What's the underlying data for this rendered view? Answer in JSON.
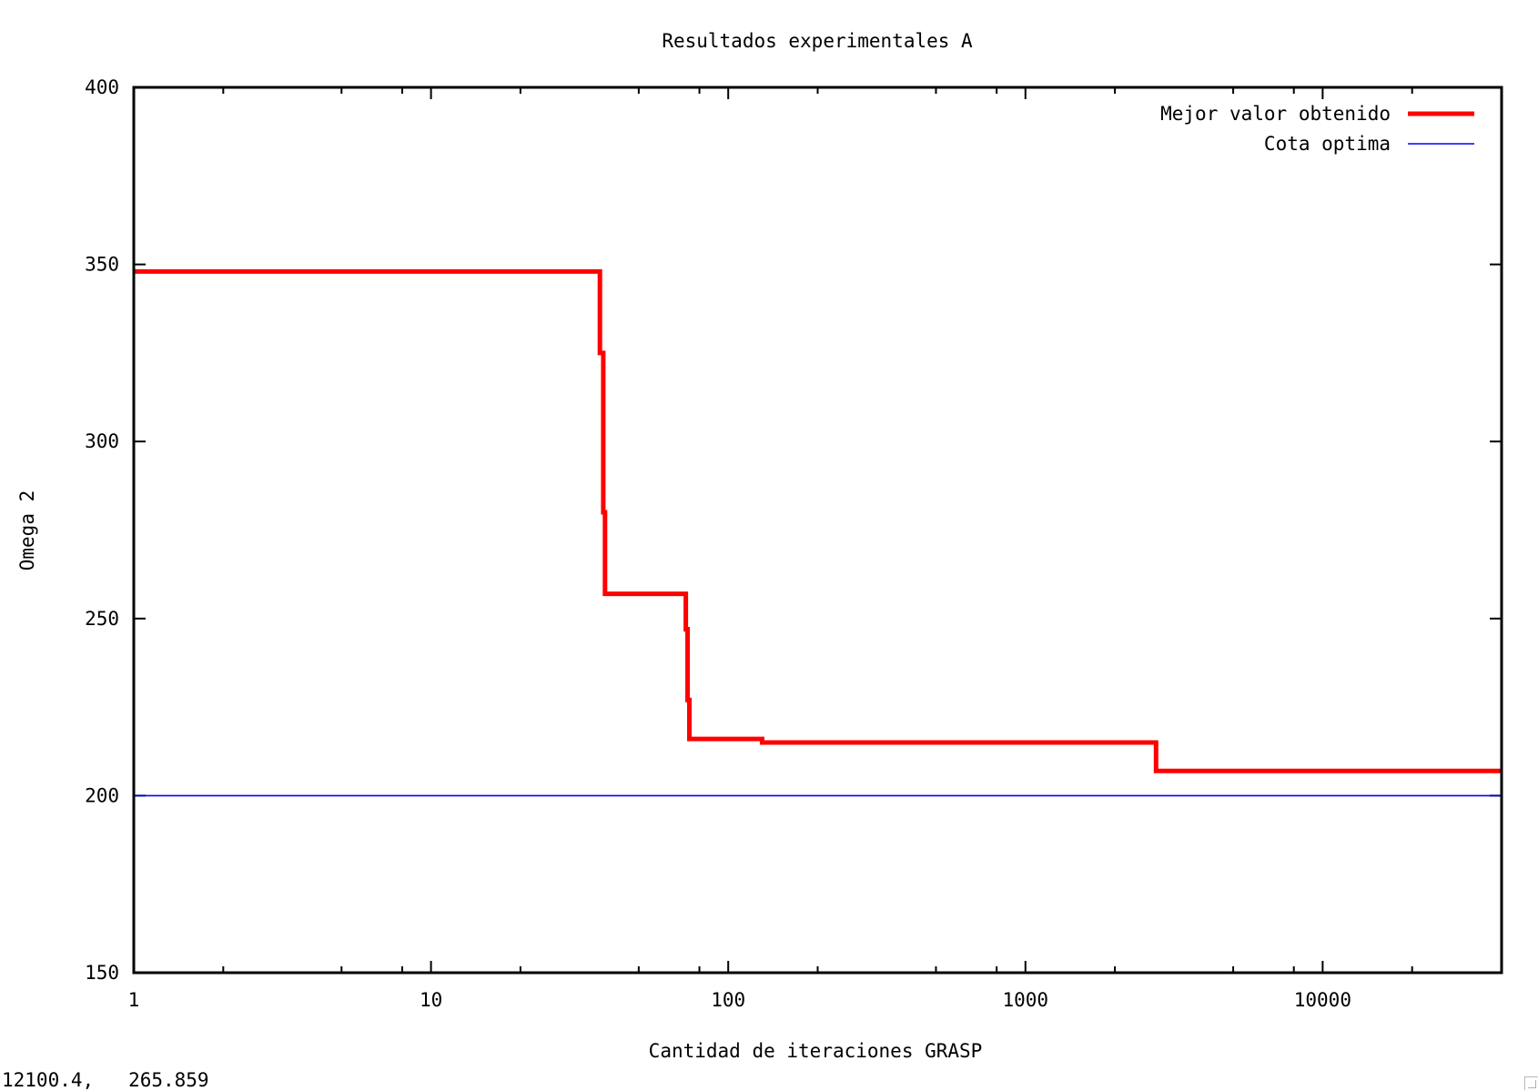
{
  "chart_data": {
    "type": "line",
    "title": "Resultados experimentales A",
    "xlabel": "Cantidad de iteraciones GRASP",
    "ylabel": "Omega 2",
    "x_scale": "log",
    "xlim": [
      1,
      40000
    ],
    "ylim": [
      150,
      400
    ],
    "x_ticks": [
      1,
      10,
      100,
      1000,
      10000
    ],
    "x_tick_labels": [
      "1",
      "10",
      "100",
      "1000",
      "10000"
    ],
    "y_ticks": [
      150,
      200,
      250,
      300,
      350,
      400
    ],
    "y_tick_labels": [
      "150",
      "200",
      "250",
      "300",
      "350",
      "400"
    ],
    "grid": false,
    "legend_position": "top-right",
    "series": [
      {
        "name": "Mejor valor obtenido",
        "color": "#ff0000",
        "style": "thick-steps",
        "points": [
          [
            1,
            348
          ],
          [
            37,
            348
          ],
          [
            37,
            325
          ],
          [
            38,
            325
          ],
          [
            38,
            280
          ],
          [
            38.5,
            280
          ],
          [
            38.5,
            257
          ],
          [
            72,
            257
          ],
          [
            72,
            247
          ],
          [
            73,
            247
          ],
          [
            73,
            227
          ],
          [
            74,
            227
          ],
          [
            74,
            216
          ],
          [
            130,
            216
          ],
          [
            130,
            215
          ],
          [
            2750,
            215
          ],
          [
            2750,
            207
          ],
          [
            40000,
            207
          ]
        ]
      },
      {
        "name": "Cota optima",
        "color": "#0000ff",
        "style": "thin-line",
        "points": [
          [
            1,
            200
          ],
          [
            40000,
            200
          ]
        ]
      }
    ]
  },
  "status": {
    "coords": "12100.4,   265.859"
  }
}
